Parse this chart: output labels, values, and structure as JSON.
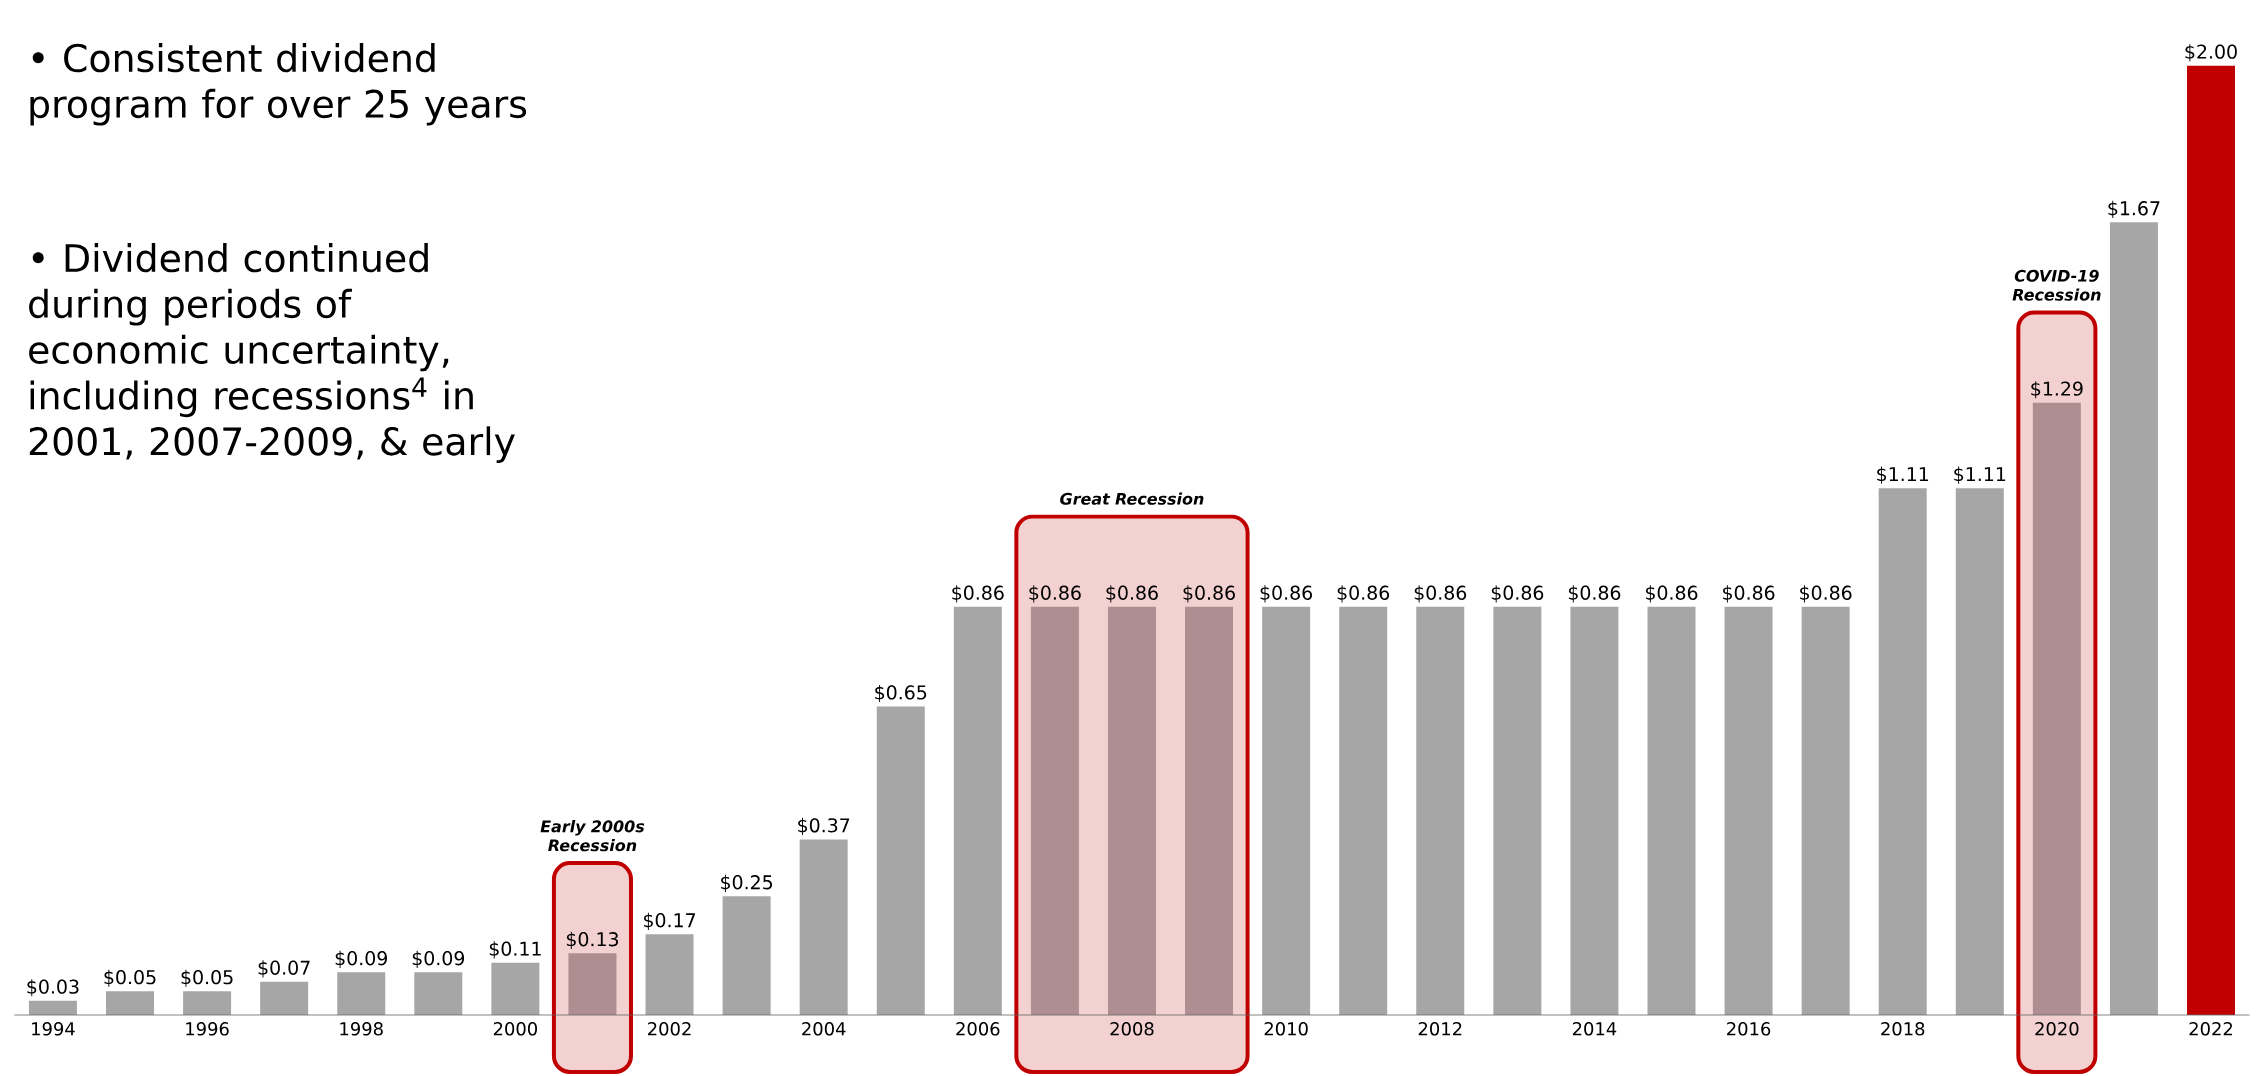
{
  "chart_data": {
    "type": "bar",
    "x": [
      1994,
      1995,
      1996,
      1997,
      1998,
      1999,
      2000,
      2001,
      2002,
      2003,
      2004,
      2005,
      2006,
      2007,
      2008,
      2009,
      2010,
      2011,
      2012,
      2013,
      2014,
      2015,
      2016,
      2017,
      2018,
      2019,
      2020,
      2021,
      2022
    ],
    "values": [
      0.03,
      0.05,
      0.05,
      0.07,
      0.09,
      0.09,
      0.11,
      0.13,
      0.17,
      0.25,
      0.37,
      0.65,
      0.86,
      0.86,
      0.86,
      0.86,
      0.86,
      0.86,
      0.86,
      0.86,
      0.86,
      0.86,
      0.86,
      0.86,
      1.11,
      1.11,
      1.29,
      1.67,
      2.0
    ],
    "value_labels": [
      "$0.03",
      "$0.05",
      "$0.05",
      "$0.07",
      "$0.09",
      "$0.09",
      "$0.11",
      "$0.13",
      "$0.17",
      "$0.25",
      "$0.37",
      "$0.65",
      "$0.86",
      "$0.86",
      "$0.86",
      "$0.86",
      "$0.86",
      "$0.86",
      "$0.86",
      "$0.86",
      "$0.86",
      "$0.86",
      "$0.86",
      "$0.86",
      "$1.11",
      "$1.11",
      "$1.29",
      "$1.67",
      "$2.00"
    ],
    "colors": [
      "#a6a6a6",
      "#a6a6a6",
      "#a6a6a6",
      "#a6a6a6",
      "#a6a6a6",
      "#a6a6a6",
      "#a6a6a6",
      "#ae8e90",
      "#a6a6a6",
      "#a6a6a6",
      "#a6a6a6",
      "#a6a6a6",
      "#a6a6a6",
      "#ae8e90",
      "#ae8e90",
      "#ae8e90",
      "#a6a6a6",
      "#a6a6a6",
      "#a6a6a6",
      "#a6a6a6",
      "#a6a6a6",
      "#a6a6a6",
      "#a6a6a6",
      "#a6a6a6",
      "#a6a6a6",
      "#a6a6a6",
      "#ae8e90",
      "#a6a6a6",
      "#c00000"
    ],
    "xlim": [
      1993.5,
      2022.5
    ],
    "xticks": [
      1994,
      1996,
      1998,
      2000,
      2002,
      2004,
      2006,
      2008,
      2010,
      2012,
      2014,
      2016,
      2018,
      2020,
      2022
    ],
    "tick_labels": "x",
    "bands": [
      {
        "axis": "x",
        "from": 2000.5,
        "to": 2001.5,
        "label": "Early 2000s Recession",
        "color": "#c00000"
      },
      {
        "axis": "x",
        "from": 2006.5,
        "to": 2009.5,
        "label": "Great Recession",
        "color": "#c00000"
      },
      {
        "axis": "x",
        "from": 2019.5,
        "to": 2020.5,
        "label": "COVID-19 Recession",
        "color": "#c00000"
      }
    ],
    "annotations": [
      "• Consistent dividend program for over 25 years",
      "• Dividend continued during periods of economic uncertainty, including recessions$^{4}$ in 2001, 2007-2009, & early"
    ]
  }
}
